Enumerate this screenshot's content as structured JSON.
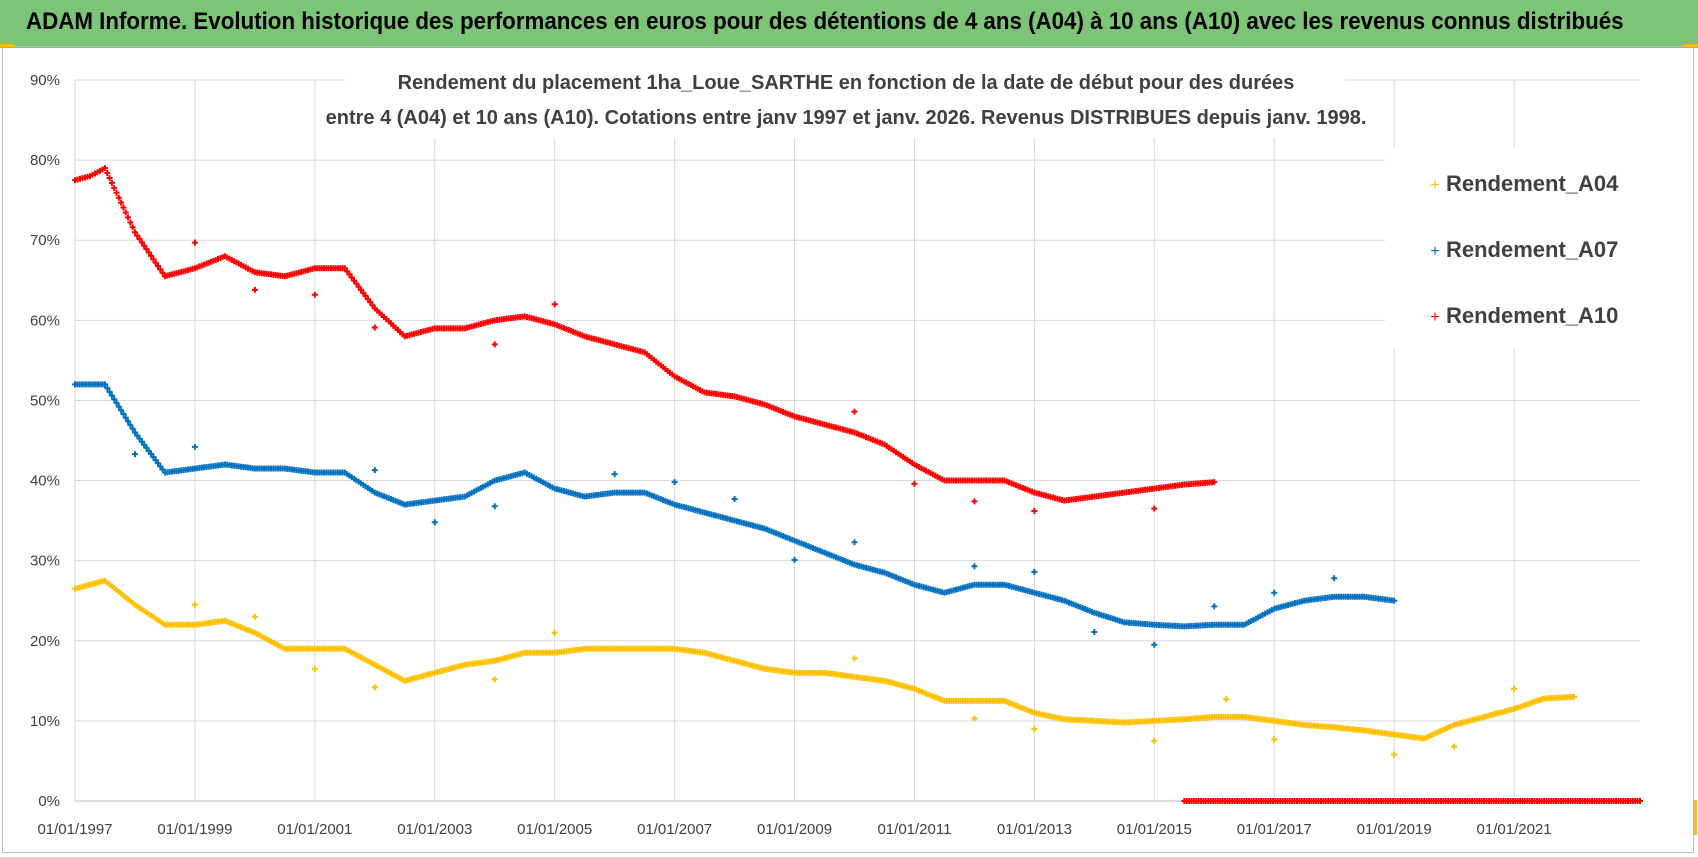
{
  "header": {
    "title": "ADAM Informe. Evolution historique des performances en euros pour des détentions de 4 ans (A04) à 10 ans (A10) avec les revenus connus distribués"
  },
  "chart_data": {
    "type": "scatter",
    "title_line1": "Rendement du placement 1ha_Loue_SARTHE en fonction de la date de début pour des durées",
    "title_line2": "entre 4 (A04) et 10 ans (A10).  Cotations entre janv 1997 et janv. 2026. Revenus DISTRIBUES depuis janv. 1998.",
    "xlabel": "",
    "ylabel": "",
    "x_ticks": [
      "01/01/1997",
      "01/01/1999",
      "01/01/2001",
      "01/01/2003",
      "01/01/2005",
      "01/01/2007",
      "01/01/2009",
      "01/01/2011",
      "01/01/2013",
      "01/01/2015",
      "01/01/2017",
      "01/01/2019",
      "01/01/2021"
    ],
    "y_ticks": [
      "0%",
      "10%",
      "20%",
      "30%",
      "40%",
      "50%",
      "60%",
      "70%",
      "80%",
      "90%"
    ],
    "xlim": [
      1997,
      2023.1
    ],
    "ylim": [
      0,
      90
    ],
    "legend_position": "top-right",
    "series": [
      {
        "name": "Rendement_A04",
        "color": "#ffc000",
        "x": [
          1997.0,
          1997.5,
          1998.0,
          1998.5,
          1999.0,
          1999.5,
          2000.0,
          2000.5,
          2001.0,
          2001.5,
          2002.0,
          2002.5,
          2003.0,
          2003.5,
          2004.0,
          2004.5,
          2005.0,
          2005.5,
          2006.0,
          2006.5,
          2007.0,
          2007.5,
          2008.0,
          2008.5,
          2009.0,
          2009.5,
          2010.0,
          2010.5,
          2011.0,
          2011.5,
          2012.0,
          2012.5,
          2013.0,
          2013.5,
          2014.0,
          2014.5,
          2015.0,
          2015.5,
          2016.0,
          2016.5,
          2017.0,
          2017.5,
          2018.0,
          2018.5,
          2019.0,
          2019.5,
          2020.0,
          2020.5,
          2021.0,
          2021.5,
          2022.0
        ],
        "values": [
          26.5,
          27.5,
          24.5,
          22.0,
          22.0,
          22.5,
          21.0,
          19.0,
          19.0,
          19.0,
          17.0,
          15.0,
          16.0,
          17.0,
          17.5,
          18.5,
          18.5,
          19.0,
          19.0,
          19.0,
          19.0,
          18.5,
          17.5,
          16.5,
          16.0,
          16.0,
          15.5,
          15.0,
          14.0,
          12.5,
          12.5,
          12.5,
          11.0,
          10.2,
          10.0,
          9.8,
          10.0,
          10.2,
          10.5,
          10.5,
          10.0,
          9.5,
          9.2,
          8.8,
          8.3,
          7.8,
          9.5,
          10.5,
          11.5,
          12.8,
          13.0
        ]
      },
      {
        "name": "Rendement_A07",
        "color": "#0070c0",
        "x": [
          1997.0,
          1997.5,
          1998.0,
          1998.5,
          1999.0,
          1999.5,
          2000.0,
          2000.5,
          2001.0,
          2001.5,
          2002.0,
          2002.5,
          2003.0,
          2003.5,
          2004.0,
          2004.5,
          2005.0,
          2005.5,
          2006.0,
          2006.5,
          2007.0,
          2007.5,
          2008.0,
          2008.5,
          2009.0,
          2009.5,
          2010.0,
          2010.5,
          2011.0,
          2011.5,
          2012.0,
          2012.5,
          2013.0,
          2013.5,
          2014.0,
          2014.5,
          2015.0,
          2015.5,
          2016.0,
          2016.5,
          2017.0,
          2017.5,
          2018.0,
          2018.5,
          2019.0
        ],
        "values": [
          52.0,
          52.0,
          46.0,
          41.0,
          41.5,
          42.0,
          41.5,
          41.5,
          41.0,
          41.0,
          38.5,
          37.0,
          37.5,
          38.0,
          40.0,
          41.0,
          39.0,
          38.0,
          38.5,
          38.5,
          37.0,
          36.0,
          35.0,
          34.0,
          32.5,
          31.0,
          29.5,
          28.5,
          27.0,
          26.0,
          27.0,
          27.0,
          26.0,
          25.0,
          23.5,
          22.3,
          22.0,
          21.8,
          22.0,
          22.0,
          24.0,
          25.0,
          25.5,
          25.5,
          25.0
        ]
      },
      {
        "name": "Rendement_A10",
        "color": "#ff0000",
        "x": [
          1997.0,
          1997.25,
          1997.5,
          1998.0,
          1998.5,
          1999.0,
          1999.5,
          2000.0,
          2000.5,
          2001.0,
          2001.5,
          2002.0,
          2002.5,
          2003.0,
          2003.5,
          2004.0,
          2004.5,
          2005.0,
          2005.5,
          2006.0,
          2006.5,
          2007.0,
          2007.5,
          2008.0,
          2008.5,
          2009.0,
          2009.5,
          2010.0,
          2010.5,
          2011.0,
          2011.5,
          2012.0,
          2012.5,
          2013.0,
          2013.5,
          2014.0,
          2014.5,
          2015.0,
          2015.5,
          2016.0
        ],
        "values": [
          77.5,
          78.0,
          79.0,
          71.0,
          65.5,
          66.5,
          68.0,
          66.0,
          65.5,
          66.5,
          66.5,
          61.5,
          58.0,
          59.0,
          59.0,
          60.0,
          60.5,
          59.5,
          58.0,
          57.0,
          56.0,
          53.0,
          51.0,
          50.5,
          49.5,
          48.0,
          47.0,
          46.0,
          44.5,
          42.0,
          40.0,
          40.0,
          40.0,
          38.5,
          37.5,
          38.0,
          38.5,
          39.0,
          39.5,
          39.8
        ]
      },
      {
        "name": "Rendement_A10 (zero)",
        "color": "#ff0000",
        "x": [
          2015.5,
          2023.1
        ],
        "values": [
          0,
          0
        ]
      }
    ],
    "outliers": [
      {
        "series": "Rendement_A04",
        "x": [
          1999.0,
          2000.0,
          2001.0,
          2002.0,
          2004.0,
          2005.0,
          2010.0,
          2012.0,
          2013.0,
          2015.0,
          2016.2,
          2017.0,
          2019.0,
          2020.0,
          2021.0
        ],
        "values": [
          24.5,
          23.0,
          16.5,
          14.2,
          15.2,
          21.0,
          17.8,
          10.3,
          9.0,
          7.5,
          12.7,
          7.7,
          5.8,
          6.8,
          14.0
        ]
      },
      {
        "series": "Rendement_A07",
        "x": [
          1998.0,
          1999.0,
          2002.0,
          2003.0,
          2004.0,
          2006.0,
          2007.0,
          2008.0,
          2009.0,
          2010.0,
          2012.0,
          2013.0,
          2014.0,
          2015.0,
          2016.0,
          2017.0,
          2018.0
        ],
        "values": [
          43.3,
          44.2,
          41.3,
          34.8,
          36.8,
          40.8,
          39.8,
          37.7,
          30.1,
          32.3,
          29.3,
          28.6,
          21.1,
          19.5,
          24.3,
          26.0,
          27.8
        ]
      },
      {
        "series": "Rendement_A10",
        "x": [
          1999.0,
          2000.0,
          2001.0,
          2002.0,
          2004.0,
          2005.0,
          2010.0,
          2011.0,
          2012.0,
          2013.0,
          2015.0
        ],
        "values": [
          69.7,
          63.8,
          63.2,
          59.1,
          57.0,
          62.0,
          48.6,
          39.6,
          37.4,
          36.2,
          36.5
        ]
      }
    ],
    "legend": [
      "Rendement_A04",
      "Rendement_A07",
      "Rendement_A10"
    ]
  }
}
